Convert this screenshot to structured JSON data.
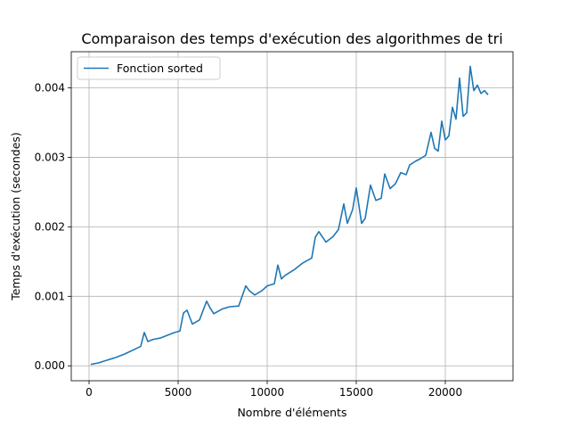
{
  "chart_data": {
    "type": "line",
    "title": "Comparaison des temps d'exécution des algorithmes de tri",
    "xlabel": "Nombre d'éléments",
    "ylabel": "Temps d'exécution (secondes)",
    "xlim": [
      -1000,
      23800
    ],
    "ylim": [
      -0.000215,
      0.00452
    ],
    "xticks": [
      0,
      5000,
      10000,
      15000,
      20000
    ],
    "xtick_labels": [
      "0",
      "5000",
      "10000",
      "15000",
      "20000"
    ],
    "yticks": [
      0,
      0.001,
      0.002,
      0.003,
      0.004
    ],
    "ytick_labels": [
      "0.000",
      "0.001",
      "0.002",
      "0.003",
      "0.004"
    ],
    "grid": true,
    "legend_position": "top-left",
    "series_color": "#1f77b4",
    "series": [
      {
        "name": "Fonction sorted",
        "x": [
          100,
          500,
          1000,
          1500,
          2000,
          2500,
          2900,
          3100,
          3300,
          3600,
          4000,
          4400,
          4800,
          5100,
          5300,
          5500,
          5800,
          6200,
          6600,
          6800,
          7000,
          7500,
          7900,
          8400,
          8800,
          9000,
          9300,
          9700,
          10000,
          10400,
          10600,
          10800,
          11000,
          11500,
          12000,
          12500,
          12700,
          12900,
          13300,
          13700,
          14000,
          14300,
          14500,
          14800,
          15000,
          15300,
          15500,
          15800,
          16100,
          16400,
          16600,
          16900,
          17200,
          17500,
          17800,
          18000,
          18300,
          18600,
          18900,
          19200,
          19400,
          19600,
          19800,
          20000,
          20200,
          20400,
          20600,
          20800,
          21000,
          21200,
          21400,
          21600,
          21800,
          22000,
          22200,
          22400
        ],
        "y": [
          2e-05,
          4e-05,
          8e-05,
          0.00012,
          0.00017,
          0.00023,
          0.00028,
          0.00048,
          0.00035,
          0.00038,
          0.0004,
          0.00044,
          0.00048,
          0.0005,
          0.00076,
          0.0008,
          0.0006,
          0.00066,
          0.00093,
          0.00083,
          0.00075,
          0.00082,
          0.00085,
          0.00086,
          0.00115,
          0.00108,
          0.00102,
          0.00108,
          0.00115,
          0.00118,
          0.00145,
          0.00125,
          0.0013,
          0.00138,
          0.00148,
          0.00155,
          0.00185,
          0.00193,
          0.00178,
          0.00186,
          0.00196,
          0.00233,
          0.00205,
          0.00225,
          0.00256,
          0.00205,
          0.00212,
          0.0026,
          0.00238,
          0.00241,
          0.00276,
          0.00255,
          0.00262,
          0.00278,
          0.00275,
          0.00289,
          0.00294,
          0.00298,
          0.00303,
          0.00336,
          0.00313,
          0.00309,
          0.00352,
          0.00325,
          0.00331,
          0.00372,
          0.00355,
          0.00414,
          0.00359,
          0.00364,
          0.00431,
          0.00396,
          0.00404,
          0.00392,
          0.00396,
          0.0039
        ]
      }
    ]
  }
}
